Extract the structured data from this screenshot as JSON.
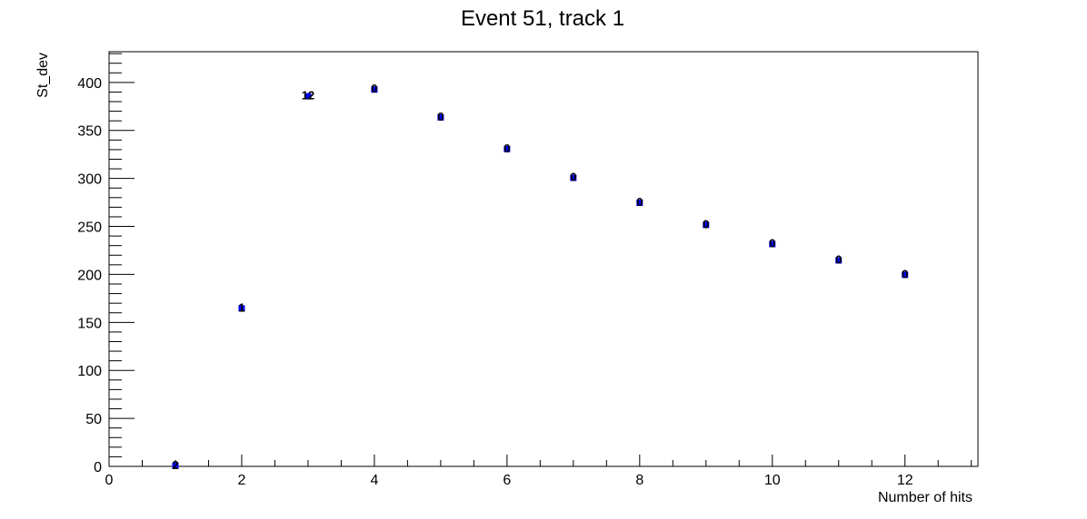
{
  "chart_data": {
    "type": "scatter",
    "title": "Event 51, track 1",
    "xlabel": "Number of hits",
    "ylabel": "St_dev",
    "xlim": [
      0,
      13.1
    ],
    "ylim": [
      0,
      432
    ],
    "x_ticks": [
      0,
      2,
      4,
      6,
      8,
      10,
      12
    ],
    "y_ticks": [
      0,
      50,
      100,
      150,
      200,
      250,
      300,
      350,
      400
    ],
    "grid": false,
    "marker_color": "#0000ff",
    "points": [
      {
        "x": 1,
        "y": 2,
        "label": "2"
      },
      {
        "x": 2,
        "y": 166,
        "label": "1"
      },
      {
        "x": 3,
        "y": 387,
        "label": "12"
      },
      {
        "x": 4,
        "y": 394,
        "label": "0"
      },
      {
        "x": 5,
        "y": 365,
        "label": "0"
      },
      {
        "x": 6,
        "y": 332,
        "label": "0"
      },
      {
        "x": 7,
        "y": 302,
        "label": "0"
      },
      {
        "x": 8,
        "y": 276,
        "label": "0"
      },
      {
        "x": 9,
        "y": 253,
        "label": "0"
      },
      {
        "x": 10,
        "y": 233,
        "label": "0"
      },
      {
        "x": 11,
        "y": 216,
        "label": "0"
      },
      {
        "x": 12,
        "y": 201,
        "label": "0"
      }
    ]
  }
}
